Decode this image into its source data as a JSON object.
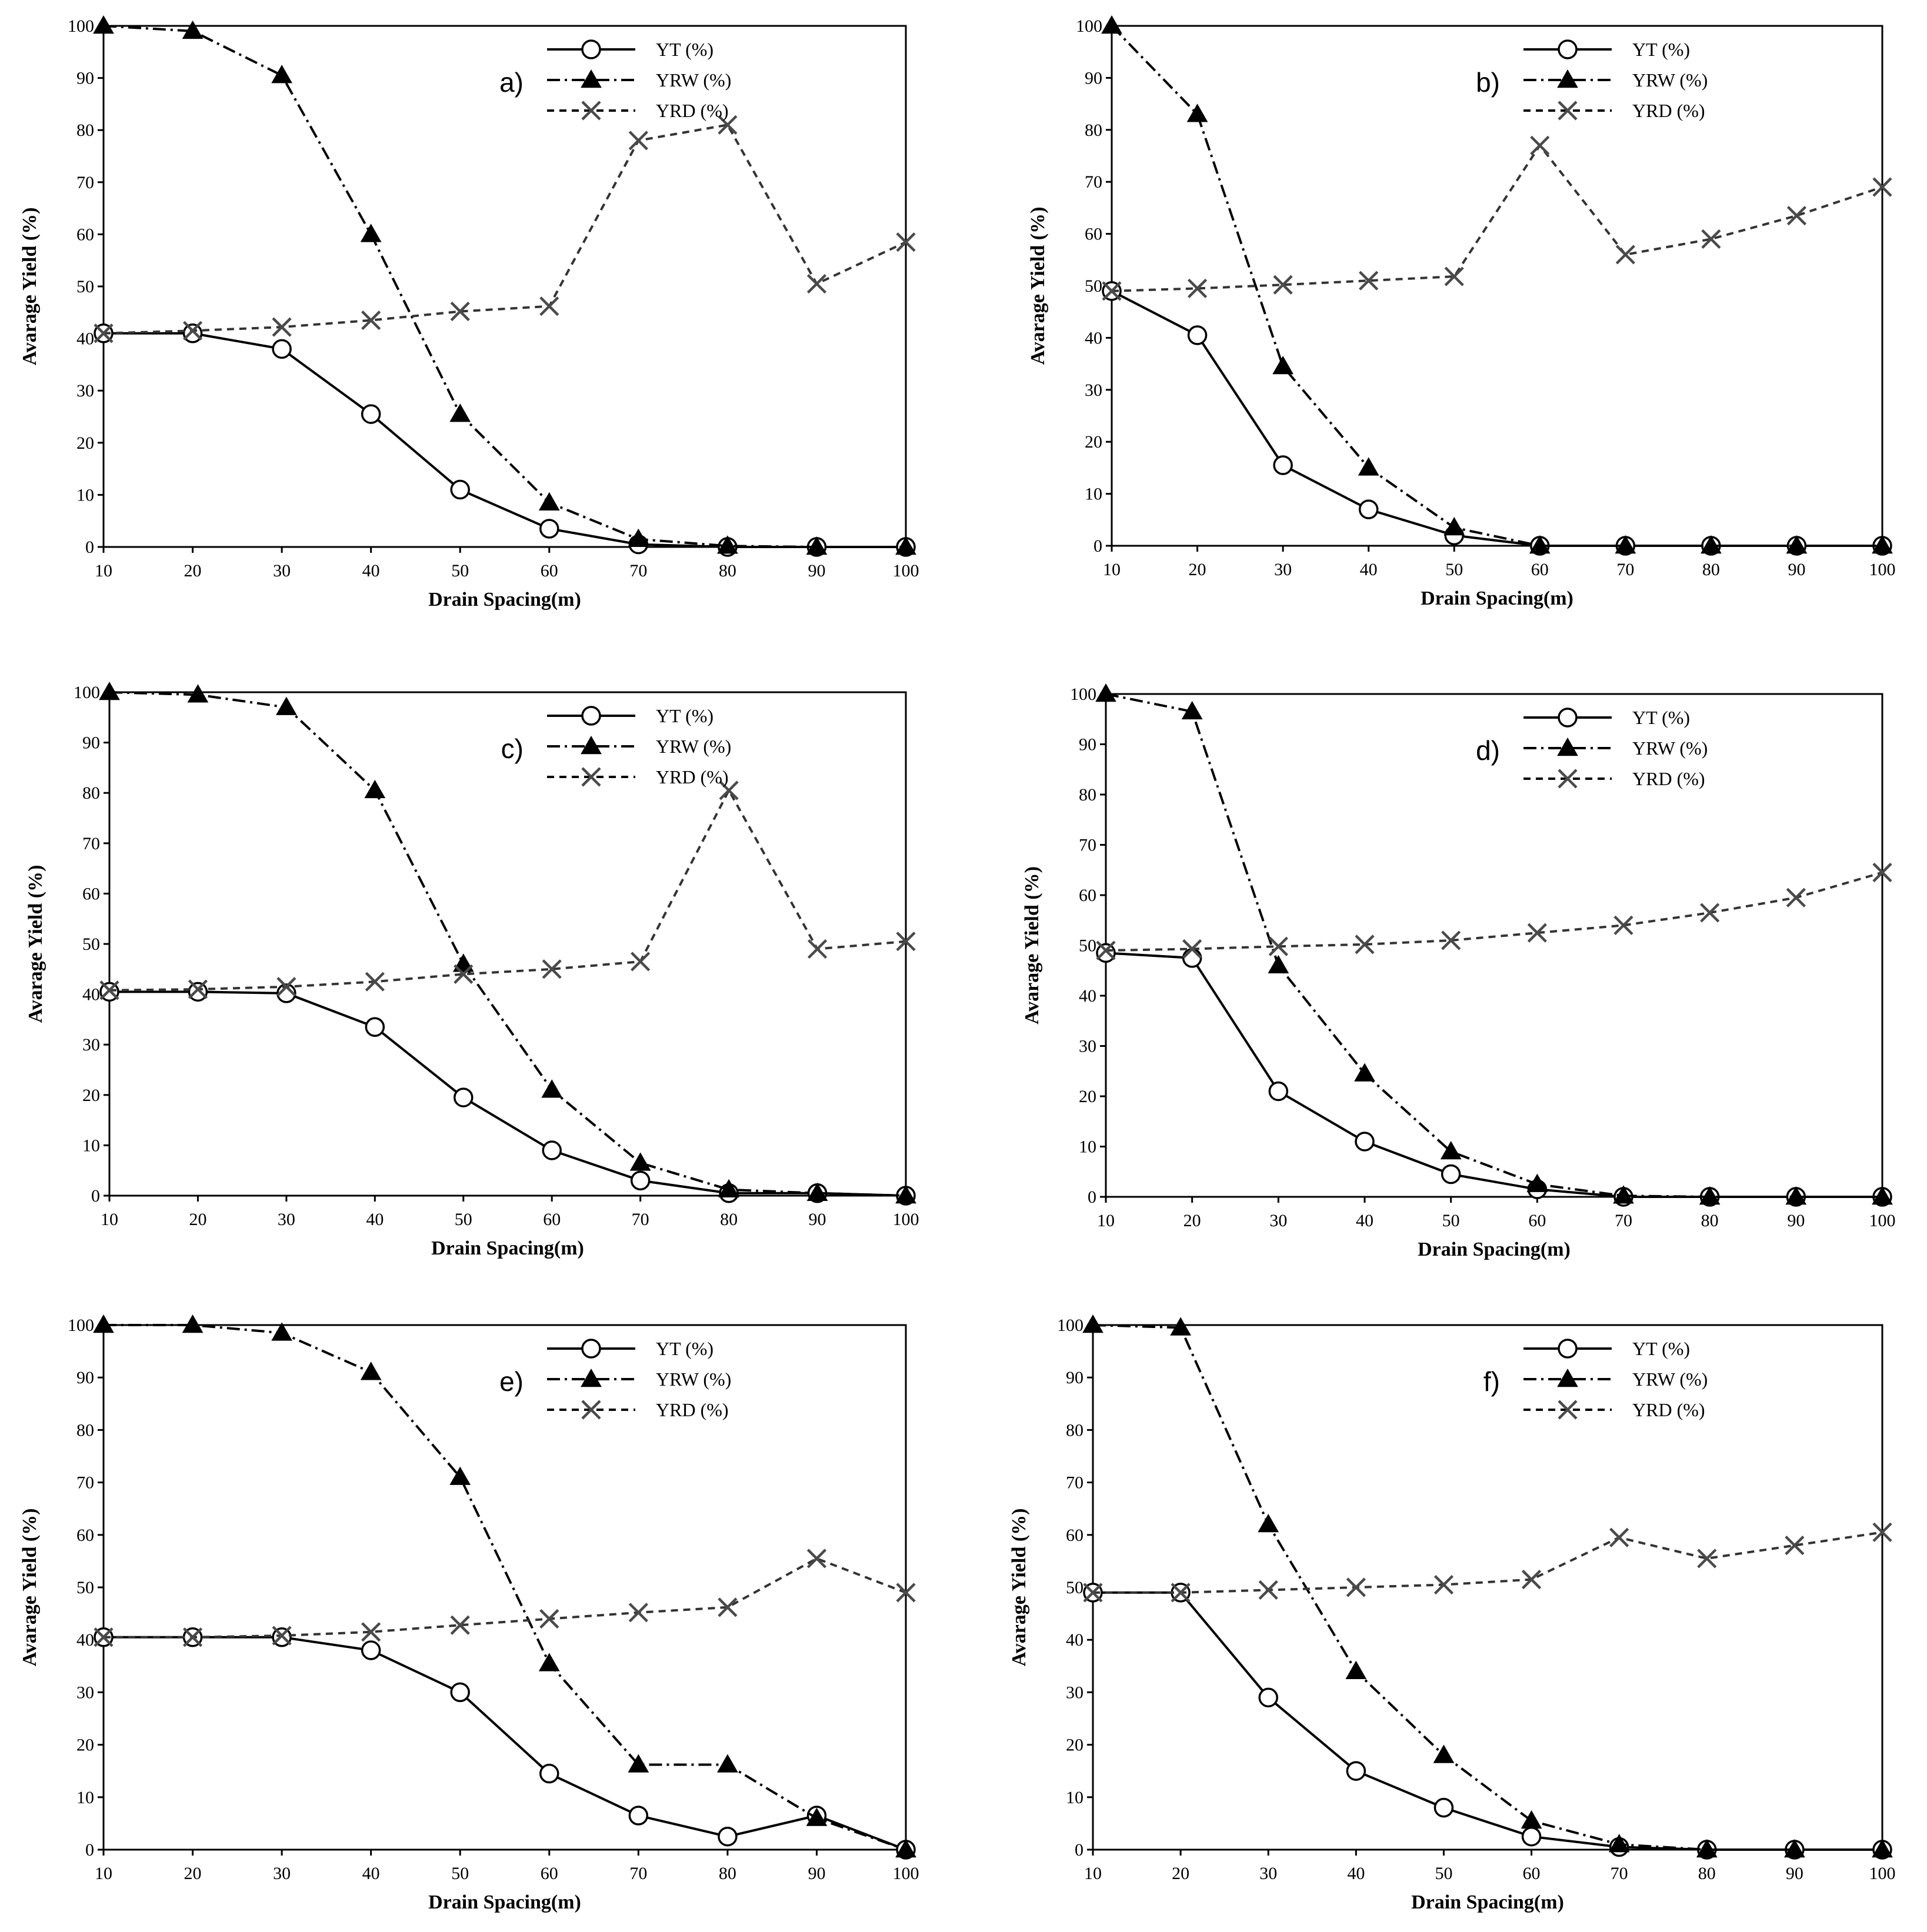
{
  "chart_data": [
    {
      "type": "line",
      "panel_label": "a)",
      "xlabel": "Drain Spacing(m)",
      "ylabel": "Avarage Yield (%)",
      "x": [
        10,
        20,
        30,
        40,
        50,
        60,
        70,
        80,
        90,
        100
      ],
      "xlim": [
        10,
        100
      ],
      "ylim": [
        0,
        100
      ],
      "x_ticks": [
        "10",
        "20",
        "30",
        "40",
        "50",
        "60",
        "70",
        "80",
        "90",
        "100"
      ],
      "y_ticks": [
        "0",
        "10",
        "20",
        "30",
        "40",
        "50",
        "60",
        "70",
        "80",
        "90",
        "100"
      ],
      "legend_position": "top-right",
      "series": [
        {
          "name": "YT (%)",
          "marker": "circle",
          "line": "solid",
          "values": [
            41,
            41,
            38,
            25.5,
            11,
            3.5,
            0.5,
            0,
            0,
            0
          ]
        },
        {
          "name": "YRW (%)",
          "marker": "triangle",
          "line": "dashdot",
          "values": [
            100,
            99,
            90.5,
            60,
            25.5,
            8.5,
            1.5,
            0.2,
            0,
            0
          ]
        },
        {
          "name": "YRD (%)",
          "marker": "x",
          "line": "dashed",
          "values": [
            41,
            41.5,
            42.2,
            43.5,
            45.2,
            46.2,
            78,
            81,
            50.5,
            58.5
          ]
        }
      ]
    },
    {
      "type": "line",
      "panel_label": "b)",
      "xlabel": "Drain Spacing(m)",
      "ylabel": "Avarage Yield (%)",
      "x": [
        10,
        20,
        30,
        40,
        50,
        60,
        70,
        80,
        90,
        100
      ],
      "xlim": [
        10,
        100
      ],
      "ylim": [
        0,
        100
      ],
      "x_ticks": [
        "10",
        "20",
        "30",
        "40",
        "50",
        "60",
        "70",
        "80",
        "90",
        "100"
      ],
      "y_ticks": [
        "0",
        "10",
        "20",
        "30",
        "40",
        "50",
        "60",
        "70",
        "80",
        "90",
        "100"
      ],
      "legend_position": "top-right",
      "series": [
        {
          "name": "YT (%)",
          "marker": "circle",
          "line": "solid",
          "values": [
            49,
            40.5,
            15.5,
            7,
            2,
            0,
            0,
            0,
            0,
            0
          ]
        },
        {
          "name": "YRW (%)",
          "marker": "triangle",
          "line": "dashdot",
          "values": [
            100,
            83,
            34.5,
            15,
            3.5,
            0,
            0,
            0,
            0,
            0
          ]
        },
        {
          "name": "YRD (%)",
          "marker": "x",
          "line": "dashed",
          "values": [
            49,
            49.5,
            50.2,
            51,
            51.8,
            77,
            56,
            59,
            63.5,
            69
          ]
        }
      ]
    },
    {
      "type": "line",
      "panel_label": "c)",
      "xlabel": "Drain Spacing(m)",
      "ylabel": "Avarage Yield (%)",
      "x": [
        10,
        20,
        30,
        40,
        50,
        60,
        70,
        80,
        90,
        100
      ],
      "xlim": [
        10,
        100
      ],
      "ylim": [
        0,
        100
      ],
      "x_ticks": [
        "10",
        "20",
        "30",
        "40",
        "50",
        "60",
        "70",
        "80",
        "90",
        "100"
      ],
      "y_ticks": [
        "0",
        "10",
        "20",
        "30",
        "40",
        "50",
        "60",
        "70",
        "80",
        "90",
        "100"
      ],
      "legend_position": "top-right",
      "series": [
        {
          "name": "YT (%)",
          "marker": "circle",
          "line": "solid",
          "values": [
            40.5,
            40.5,
            40.2,
            33.5,
            19.5,
            9,
            3,
            0.5,
            0.5,
            0
          ]
        },
        {
          "name": "YRW (%)",
          "marker": "triangle",
          "line": "dashdot",
          "values": [
            100,
            99.5,
            97,
            80.5,
            46,
            21,
            6.5,
            1.2,
            0.5,
            0
          ]
        },
        {
          "name": "YRD (%)",
          "marker": "x",
          "line": "dashed",
          "values": [
            40.8,
            41,
            41.5,
            42.5,
            44,
            45,
            46.5,
            80.5,
            49,
            50.5
          ]
        }
      ]
    },
    {
      "type": "line",
      "panel_label": "d)",
      "xlabel": "Drain Spacing(m)",
      "ylabel": "Avarage Yield (%)",
      "x": [
        10,
        20,
        30,
        40,
        50,
        60,
        70,
        80,
        90,
        100
      ],
      "xlim": [
        10,
        100
      ],
      "ylim": [
        0,
        100
      ],
      "x_ticks": [
        "10",
        "20",
        "30",
        "40",
        "50",
        "60",
        "70",
        "80",
        "90",
        "100"
      ],
      "y_ticks": [
        "0",
        "10",
        "20",
        "30",
        "40",
        "50",
        "60",
        "70",
        "80",
        "90",
        "100"
      ],
      "legend_position": "top-right",
      "series": [
        {
          "name": "YT (%)",
          "marker": "circle",
          "line": "solid",
          "values": [
            48.5,
            47.5,
            21,
            11,
            4.5,
            1.5,
            0,
            0,
            0,
            0
          ]
        },
        {
          "name": "YRW (%)",
          "marker": "triangle",
          "line": "dashdot",
          "values": [
            100,
            96.5,
            46,
            24.5,
            9,
            2.5,
            0.2,
            0,
            0,
            0
          ]
        },
        {
          "name": "YRD (%)",
          "marker": "x",
          "line": "dashed",
          "values": [
            49,
            49.3,
            49.8,
            50.2,
            51,
            52.5,
            54,
            56.5,
            59.5,
            64.5
          ]
        }
      ]
    },
    {
      "type": "line",
      "panel_label": "e)",
      "xlabel": "Drain Spacing(m)",
      "ylabel": "Avarage Yield (%)",
      "x": [
        10,
        20,
        30,
        40,
        50,
        60,
        70,
        80,
        90,
        100
      ],
      "xlim": [
        10,
        100
      ],
      "ylim": [
        0,
        100
      ],
      "x_ticks": [
        "10",
        "20",
        "30",
        "40",
        "50",
        "60",
        "70",
        "80",
        "90",
        "100"
      ],
      "y_ticks": [
        "0",
        "10",
        "20",
        "30",
        "40",
        "50",
        "60",
        "70",
        "80",
        "90",
        "100"
      ],
      "legend_position": "top-right",
      "series": [
        {
          "name": "YT (%)",
          "marker": "circle",
          "line": "solid",
          "values": [
            40.5,
            40.5,
            40.5,
            38,
            30,
            14.5,
            6.5,
            2.5,
            6.5,
            0
          ]
        },
        {
          "name": "YRW (%)",
          "marker": "triangle",
          "line": "dashdot",
          "values": [
            100,
            100,
            98.5,
            91,
            71,
            35.5,
            16.2,
            16.2,
            6,
            0
          ]
        },
        {
          "name": "YRD (%)",
          "marker": "x",
          "line": "dashed",
          "values": [
            40.5,
            40.5,
            40.8,
            41.5,
            42.8,
            44,
            45.2,
            46.2,
            55.5,
            49
          ]
        }
      ]
    },
    {
      "type": "line",
      "panel_label": "f)",
      "xlabel": "Drain Spacing(m)",
      "ylabel": "Avarage Yield (%)",
      "x": [
        10,
        20,
        30,
        40,
        50,
        60,
        70,
        80,
        90,
        100
      ],
      "xlim": [
        10,
        100
      ],
      "ylim": [
        0,
        100
      ],
      "x_ticks": [
        "10",
        "20",
        "30",
        "40",
        "50",
        "60",
        "70",
        "80",
        "90",
        "100"
      ],
      "y_ticks": [
        "0",
        "10",
        "20",
        "30",
        "40",
        "50",
        "60",
        "70",
        "80",
        "90",
        "100"
      ],
      "legend_position": "top-right",
      "series": [
        {
          "name": "YT (%)",
          "marker": "circle",
          "line": "solid",
          "values": [
            49,
            49,
            29,
            15,
            8,
            2.5,
            0.5,
            0,
            0,
            0
          ]
        },
        {
          "name": "YRW (%)",
          "marker": "triangle",
          "line": "dashdot",
          "values": [
            100,
            99.5,
            62,
            34,
            18,
            5.5,
            1,
            0,
            0,
            0
          ]
        },
        {
          "name": "YRD (%)",
          "marker": "x",
          "line": "dashed",
          "values": [
            49,
            49,
            49.5,
            50,
            50.5,
            51.5,
            59.5,
            55.5,
            58,
            60.5
          ]
        }
      ]
    }
  ]
}
